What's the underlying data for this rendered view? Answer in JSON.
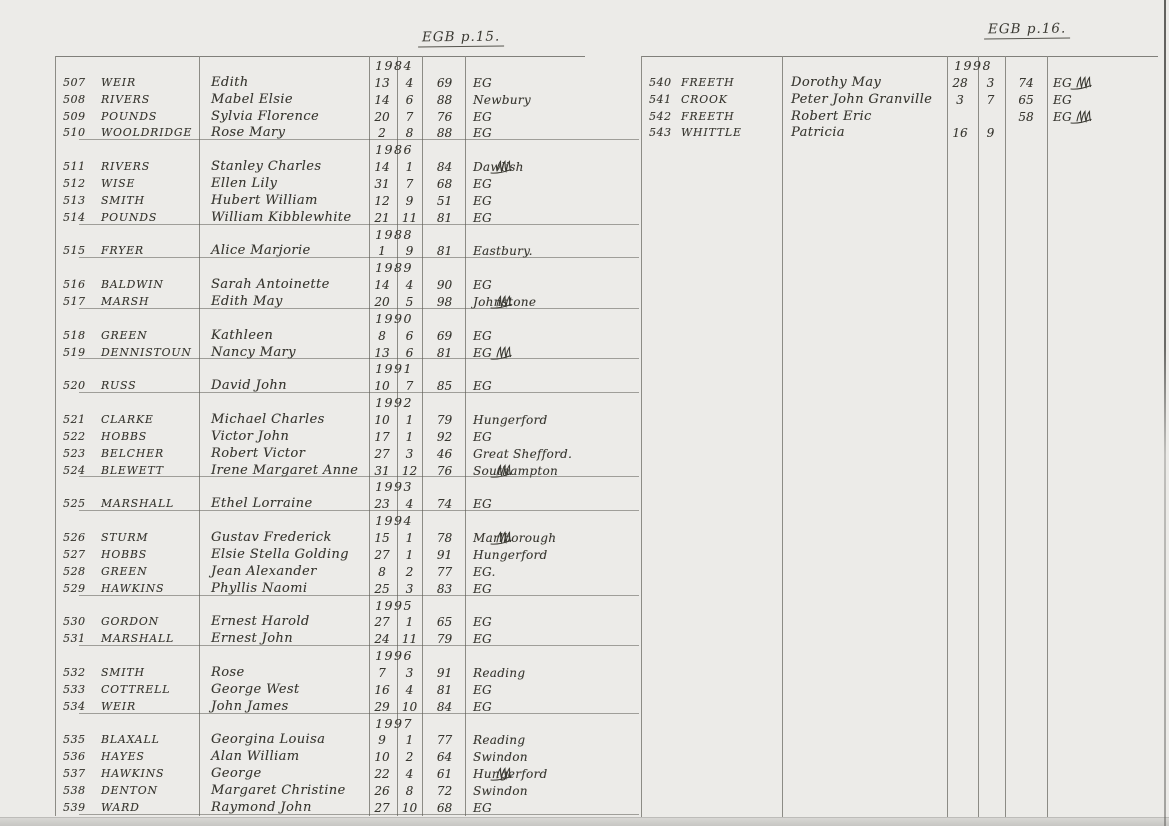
{
  "colors": {
    "paper": "#ecebe8",
    "ink": "#37362f",
    "rule_line": "#8c8b85"
  },
  "left": {
    "header": "EGB p.15.",
    "groups": [
      {
        "year": "1984",
        "rows": [
          {
            "no": "507",
            "surname": "WEIR",
            "forenames": "Edith",
            "day": "13",
            "month": "4",
            "age": "69",
            "place": "EG",
            "mark": false
          },
          {
            "no": "508",
            "surname": "RIVERS",
            "forenames": "Mabel Elsie",
            "day": "14",
            "month": "6",
            "age": "88",
            "place": "Newbury",
            "mark": false
          },
          {
            "no": "509",
            "surname": "POUNDS",
            "forenames": "Sylvia Florence",
            "day": "20",
            "month": "7",
            "age": "76",
            "place": "EG",
            "mark": false
          },
          {
            "no": "510",
            "surname": "WOOLDRIDGE",
            "forenames": "Rose Mary",
            "day": "2",
            "month": "8",
            "age": "88",
            "place": "EG",
            "mark": false
          }
        ]
      },
      {
        "year": "1986",
        "rows": [
          {
            "no": "511",
            "surname": "RIVERS",
            "forenames": "Stanley Charles",
            "day": "14",
            "month": "1",
            "age": "84",
            "place": "Dawlish",
            "mark": true
          },
          {
            "no": "512",
            "surname": "WISE",
            "forenames": "Ellen Lily",
            "day": "31",
            "month": "7",
            "age": "68",
            "place": "EG",
            "mark": false
          },
          {
            "no": "513",
            "surname": "SMITH",
            "forenames": "Hubert William",
            "day": "12",
            "month": "9",
            "age": "51",
            "place": "EG",
            "mark": false
          },
          {
            "no": "514",
            "surname": "POUNDS",
            "forenames": "William Kibblewhite",
            "day": "21",
            "month": "11",
            "age": "81",
            "place": "EG",
            "mark": false
          }
        ]
      },
      {
        "year": "1988",
        "rows": [
          {
            "no": "515",
            "surname": "FRYER",
            "forenames": "Alice Marjorie",
            "day": "1",
            "month": "9",
            "age": "81",
            "place": "Eastbury.",
            "mark": false
          }
        ]
      },
      {
        "year": "1989",
        "rows": [
          {
            "no": "516",
            "surname": "BALDWIN",
            "forenames": "Sarah Antoinette",
            "day": "14",
            "month": "4",
            "age": "90",
            "place": "EG",
            "mark": false
          },
          {
            "no": "517",
            "surname": "MARSH",
            "forenames": "Edith May",
            "day": "20",
            "month": "5",
            "age": "98",
            "place": "Johnstone",
            "mark": true
          }
        ]
      },
      {
        "year": "1990",
        "rows": [
          {
            "no": "518",
            "surname": "GREEN",
            "forenames": "Kathleen",
            "day": "8",
            "month": "6",
            "age": "69",
            "place": "EG",
            "mark": false
          },
          {
            "no": "519",
            "surname": "DENNISTOUN",
            "forenames": "Nancy Mary",
            "day": "13",
            "month": "6",
            "age": "81",
            "place": "EG",
            "mark": true
          }
        ]
      },
      {
        "year": "1991",
        "rows": [
          {
            "no": "520",
            "surname": "RUSS",
            "forenames": "David John",
            "day": "10",
            "month": "7",
            "age": "85",
            "place": "EG",
            "mark": false
          }
        ]
      },
      {
        "year": "1992",
        "rows": [
          {
            "no": "521",
            "surname": "CLARKE",
            "forenames": "Michael Charles",
            "day": "10",
            "month": "1",
            "age": "79",
            "place": "Hungerford",
            "mark": false
          },
          {
            "no": "522",
            "surname": "HOBBS",
            "forenames": "Victor John",
            "day": "17",
            "month": "1",
            "age": "92",
            "place": "EG",
            "mark": false
          },
          {
            "no": "523",
            "surname": "BELCHER",
            "forenames": "Robert Victor",
            "day": "27",
            "month": "3",
            "age": "46",
            "place": "Great Shefford.",
            "mark": false
          },
          {
            "no": "524",
            "surname": "BLEWETT",
            "forenames": "Irene Margaret Anne",
            "day": "31",
            "month": "12",
            "age": "76",
            "place": "Southampton",
            "mark": true
          }
        ]
      },
      {
        "year": "1993",
        "rows": [
          {
            "no": "525",
            "surname": "MARSHALL",
            "forenames": "Ethel Lorraine",
            "day": "23",
            "month": "4",
            "age": "74",
            "place": "EG",
            "mark": false
          }
        ]
      },
      {
        "year": "1994",
        "rows": [
          {
            "no": "526",
            "surname": "STURM",
            "forenames": "Gustav Frederick",
            "day": "15",
            "month": "1",
            "age": "78",
            "place": "Marlborough",
            "mark": true
          },
          {
            "no": "527",
            "surname": "HOBBS",
            "forenames": "Elsie Stella Golding",
            "day": "27",
            "month": "1",
            "age": "91",
            "place": "Hungerford",
            "mark": false
          },
          {
            "no": "528",
            "surname": "GREEN",
            "forenames": "Jean Alexander",
            "day": "8",
            "month": "2",
            "age": "77",
            "place": "EG.",
            "mark": false
          },
          {
            "no": "529",
            "surname": "HAWKINS",
            "forenames": "Phyllis Naomi",
            "day": "25",
            "month": "3",
            "age": "83",
            "place": "EG",
            "mark": false
          }
        ]
      },
      {
        "year": "1995",
        "rows": [
          {
            "no": "530",
            "surname": "GORDON",
            "forenames": "Ernest Harold",
            "day": "27",
            "month": "1",
            "age": "65",
            "place": "EG",
            "mark": false
          },
          {
            "no": "531",
            "surname": "MARSHALL",
            "forenames": "Ernest John",
            "day": "24",
            "month": "11",
            "age": "79",
            "place": "EG",
            "mark": false
          }
        ]
      },
      {
        "year": "1996",
        "rows": [
          {
            "no": "532",
            "surname": "SMITH",
            "forenames": "Rose",
            "day": "7",
            "month": "3",
            "age": "91",
            "place": "Reading",
            "mark": false
          },
          {
            "no": "533",
            "surname": "COTTRELL",
            "forenames": "George West",
            "day": "16",
            "month": "4",
            "age": "81",
            "place": "EG",
            "mark": false
          },
          {
            "no": "534",
            "surname": "WEIR",
            "forenames": "John James",
            "day": "29",
            "month": "10",
            "age": "84",
            "place": "EG",
            "mark": false
          }
        ]
      },
      {
        "year": "1997",
        "rows": [
          {
            "no": "535",
            "surname": "BLAXALL",
            "forenames": "Georgina Louisa",
            "day": "9",
            "month": "1",
            "age": "77",
            "place": "Reading",
            "mark": false
          },
          {
            "no": "536",
            "surname": "HAYES",
            "forenames": "Alan William",
            "day": "10",
            "month": "2",
            "age": "64",
            "place": "Swindon",
            "mark": false
          },
          {
            "no": "537",
            "surname": "HAWKINS",
            "forenames": "George",
            "day": "22",
            "month": "4",
            "age": "61",
            "place": "Hungerford",
            "mark": true
          },
          {
            "no": "538",
            "surname": "DENTON",
            "forenames": "Margaret Christine",
            "day": "26",
            "month": "8",
            "age": "72",
            "place": "Swindon",
            "mark": false
          },
          {
            "no": "539",
            "surname": "WARD",
            "forenames": "Raymond John",
            "day": "27",
            "month": "10",
            "age": "68",
            "place": "EG",
            "mark": false
          }
        ]
      }
    ]
  },
  "right": {
    "header": "EGB p.16.",
    "groups": [
      {
        "year": "1998",
        "rows": [
          {
            "no": "540",
            "surname": "FREETH",
            "forenames": "Dorothy May",
            "day": "28",
            "month": "3",
            "age": "74",
            "place": "EG",
            "mark": true
          },
          {
            "no": "541",
            "surname": "CROOK",
            "forenames": "Peter John Granville",
            "day": "3",
            "month": "7",
            "age": "65",
            "place": "EG",
            "mark": false
          },
          {
            "no": "542",
            "surname": "FREETH",
            "forenames": "Robert Eric",
            "day": "",
            "month": "",
            "age": "58",
            "place": "EG",
            "mark": true
          },
          {
            "no": "543",
            "surname": "WHITTLE",
            "forenames": "Patricia",
            "day": "16",
            "month": "9",
            "age": "",
            "place": "",
            "mark": false
          }
        ]
      }
    ]
  }
}
